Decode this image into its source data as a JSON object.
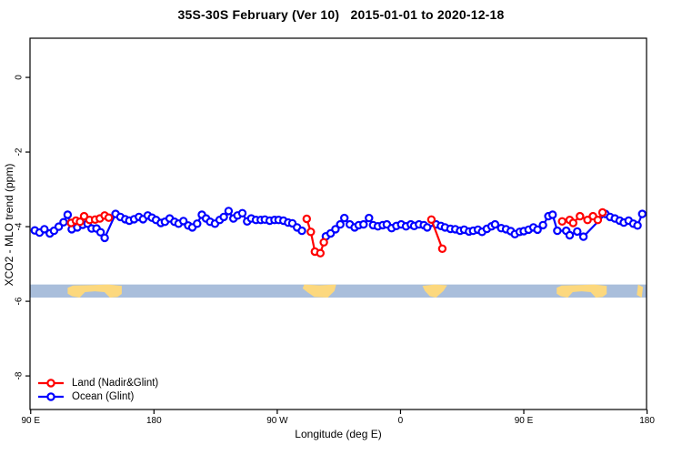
{
  "title": "35S-30S February (Ver 10)   2015-01-01 to 2020-12-18",
  "chart_data": {
    "type": "line",
    "title": "35S-30S February (Ver 10)   2015-01-01 to 2020-12-18",
    "xlabel": "Longitude (deg E)",
    "ylabel": "XCO2 - MLO trend (ppm)",
    "grid": false,
    "legend_position": "bottom-left",
    "x_axis": {
      "label": "Longitude (deg E)",
      "range": [
        89.5,
        539.6
      ],
      "ticks": [
        {
          "value": 90,
          "label": "90 E"
        },
        {
          "value": 180,
          "label": "180"
        },
        {
          "value": 270,
          "label": "90 W"
        },
        {
          "value": 360,
          "label": "0"
        },
        {
          "value": 450,
          "label": "90 E"
        },
        {
          "value": 540,
          "label": "180"
        }
      ]
    },
    "y_axis": {
      "label": "XCO2 - MLO trend (ppm)",
      "range": [
        -8.9,
        1.05
      ],
      "ticks": [
        {
          "value": 0,
          "label": "0"
        },
        {
          "value": -2,
          "label": "-2"
        },
        {
          "value": -4,
          "label": "-4"
        },
        {
          "value": -6,
          "label": "-6"
        },
        {
          "value": -8,
          "label": "-8"
        }
      ]
    },
    "map_band": {
      "description": "world coastline strip for 35S-30S latitude band",
      "ocean_color": "#a9bedb",
      "land_color": "#fcd87e",
      "value_top": -5.55,
      "value_bottom": -5.9,
      "patches": [
        {
          "name": "australia",
          "lon": [
            117,
            156.5
          ],
          "shape": "australia"
        },
        {
          "name": "south-america",
          "lon": [
            288.5,
            313
          ],
          "shape": "south-america"
        },
        {
          "name": "southern-africa",
          "lon": [
            376,
            394
          ],
          "shape": "africa"
        },
        {
          "name": "australia-repeat",
          "lon": [
            474,
            510.5
          ],
          "shape": "australia"
        },
        {
          "name": "new-zealand",
          "lon": [
            532.5,
            537
          ],
          "shape": "new-zealand"
        }
      ]
    },
    "series": [
      {
        "name": "Land (Nadir&Glint)",
        "color": "#ff0000",
        "marker": "open-circle",
        "segments": [
          [
            [
              119.5,
              -3.9
            ],
            [
              123,
              -3.84
            ],
            [
              126,
              -3.87
            ],
            [
              129,
              -3.72
            ],
            [
              133,
              -3.82
            ],
            [
              137,
              -3.81
            ],
            [
              140.5,
              -3.78
            ],
            [
              144,
              -3.7
            ],
            [
              147,
              -3.76
            ]
          ],
          [
            [
              291.5,
              -3.79
            ],
            [
              294.5,
              -4.14
            ],
            [
              297.5,
              -4.67
            ],
            [
              301.5,
              -4.71
            ],
            [
              304,
              -4.42
            ]
          ],
          [
            [
              382.5,
              -3.81
            ],
            [
              390.5,
              -4.59
            ]
          ],
          [
            [
              478,
              -3.86
            ],
            [
              483.5,
              -3.82
            ],
            [
              486,
              -3.9
            ],
            [
              491,
              -3.72
            ],
            [
              496.5,
              -3.82
            ],
            [
              500.5,
              -3.72
            ],
            [
              504,
              -3.82
            ],
            [
              507.5,
              -3.62
            ]
          ]
        ]
      },
      {
        "name": "Ocean (Glint)",
        "color": "#0000ff",
        "marker": "open-circle",
        "segments": [
          [
            [
              93,
              -4.1
            ],
            [
              96.5,
              -4.16
            ],
            [
              100,
              -4.07
            ],
            [
              104,
              -4.18
            ],
            [
              107,
              -4.11
            ],
            [
              110.5,
              -4.0
            ],
            [
              114,
              -3.88
            ],
            [
              117,
              -3.68
            ],
            [
              120,
              -4.07
            ],
            [
              124,
              -4.02
            ],
            [
              128,
              -3.95
            ],
            [
              131.5,
              -3.92
            ],
            [
              134.5,
              -4.05
            ],
            [
              138,
              -4.05
            ],
            [
              141,
              -4.15
            ],
            [
              144,
              -4.3
            ],
            [
              152,
              -3.66
            ],
            [
              155.5,
              -3.74
            ],
            [
              159,
              -3.8
            ],
            [
              162,
              -3.84
            ],
            [
              165.5,
              -3.8
            ],
            [
              169,
              -3.74
            ],
            [
              172,
              -3.8
            ],
            [
              175.5,
              -3.7
            ],
            [
              178.5,
              -3.76
            ],
            [
              181.5,
              -3.82
            ],
            [
              185,
              -3.9
            ],
            [
              188,
              -3.87
            ],
            [
              191.5,
              -3.78
            ],
            [
              195,
              -3.87
            ],
            [
              198,
              -3.92
            ],
            [
              201.5,
              -3.85
            ],
            [
              205,
              -3.97
            ],
            [
              208,
              -4.02
            ],
            [
              211.5,
              -3.92
            ],
            [
              215,
              -3.68
            ],
            [
              218,
              -3.78
            ],
            [
              221,
              -3.87
            ],
            [
              224.5,
              -3.92
            ],
            [
              228,
              -3.82
            ],
            [
              231,
              -3.74
            ],
            [
              234.5,
              -3.58
            ],
            [
              238,
              -3.78
            ],
            [
              241,
              -3.7
            ],
            [
              244.5,
              -3.64
            ],
            [
              248,
              -3.86
            ],
            [
              251,
              -3.78
            ],
            [
              254.5,
              -3.82
            ],
            [
              258,
              -3.82
            ],
            [
              261,
              -3.81
            ],
            [
              264.5,
              -3.84
            ],
            [
              268,
              -3.82
            ],
            [
              271,
              -3.82
            ],
            [
              274.5,
              -3.84
            ],
            [
              278,
              -3.89
            ],
            [
              281,
              -3.91
            ],
            [
              284.5,
              -4.02
            ],
            [
              288,
              -4.11
            ]
          ],
          [
            [
              305.5,
              -4.26
            ],
            [
              309,
              -4.18
            ],
            [
              312.5,
              -4.07
            ],
            [
              316,
              -3.94
            ],
            [
              319,
              -3.77
            ],
            [
              323,
              -3.94
            ],
            [
              326.5,
              -4.02
            ],
            [
              329.5,
              -3.96
            ],
            [
              333,
              -3.94
            ],
            [
              337,
              -3.77
            ],
            [
              340,
              -3.96
            ],
            [
              343.5,
              -3.99
            ],
            [
              347,
              -3.96
            ],
            [
              350,
              -3.94
            ],
            [
              353.5,
              -4.04
            ],
            [
              357,
              -3.98
            ],
            [
              360.5,
              -3.94
            ],
            [
              364,
              -3.99
            ],
            [
              367.5,
              -3.94
            ],
            [
              370,
              -3.98
            ],
            [
              373.5,
              -3.94
            ],
            [
              377,
              -3.96
            ],
            [
              379.5,
              -4.02
            ],
            [
              386,
              -3.94
            ],
            [
              389.5,
              -3.98
            ],
            [
              392.5,
              -4.02
            ],
            [
              396.5,
              -4.06
            ],
            [
              400,
              -4.07
            ],
            [
              403.5,
              -4.11
            ],
            [
              406.5,
              -4.08
            ],
            [
              410,
              -4.13
            ],
            [
              413,
              -4.11
            ],
            [
              416.5,
              -4.08
            ],
            [
              419.5,
              -4.14
            ],
            [
              423,
              -4.06
            ],
            [
              426.5,
              -3.99
            ],
            [
              429,
              -3.94
            ],
            [
              433.5,
              -4.04
            ],
            [
              437,
              -4.07
            ],
            [
              440.5,
              -4.12
            ],
            [
              443.5,
              -4.2
            ],
            [
              447,
              -4.14
            ],
            [
              450,
              -4.12
            ],
            [
              453.5,
              -4.08
            ],
            [
              457,
              -4.02
            ],
            [
              460,
              -4.08
            ],
            [
              464,
              -3.96
            ],
            [
              468,
              -3.72
            ],
            [
              471,
              -3.68
            ],
            [
              474.5,
              -4.11
            ],
            [
              481,
              -4.11
            ],
            [
              483.5,
              -4.23
            ],
            [
              489,
              -4.13
            ],
            [
              493.5,
              -4.27
            ],
            [
              509.5,
              -3.66
            ],
            [
              513,
              -3.74
            ],
            [
              516.5,
              -3.78
            ],
            [
              520,
              -3.84
            ],
            [
              523,
              -3.89
            ],
            [
              526.5,
              -3.84
            ],
            [
              530,
              -3.92
            ],
            [
              533,
              -3.97
            ],
            [
              536.5,
              -3.66
            ]
          ]
        ]
      }
    ]
  }
}
